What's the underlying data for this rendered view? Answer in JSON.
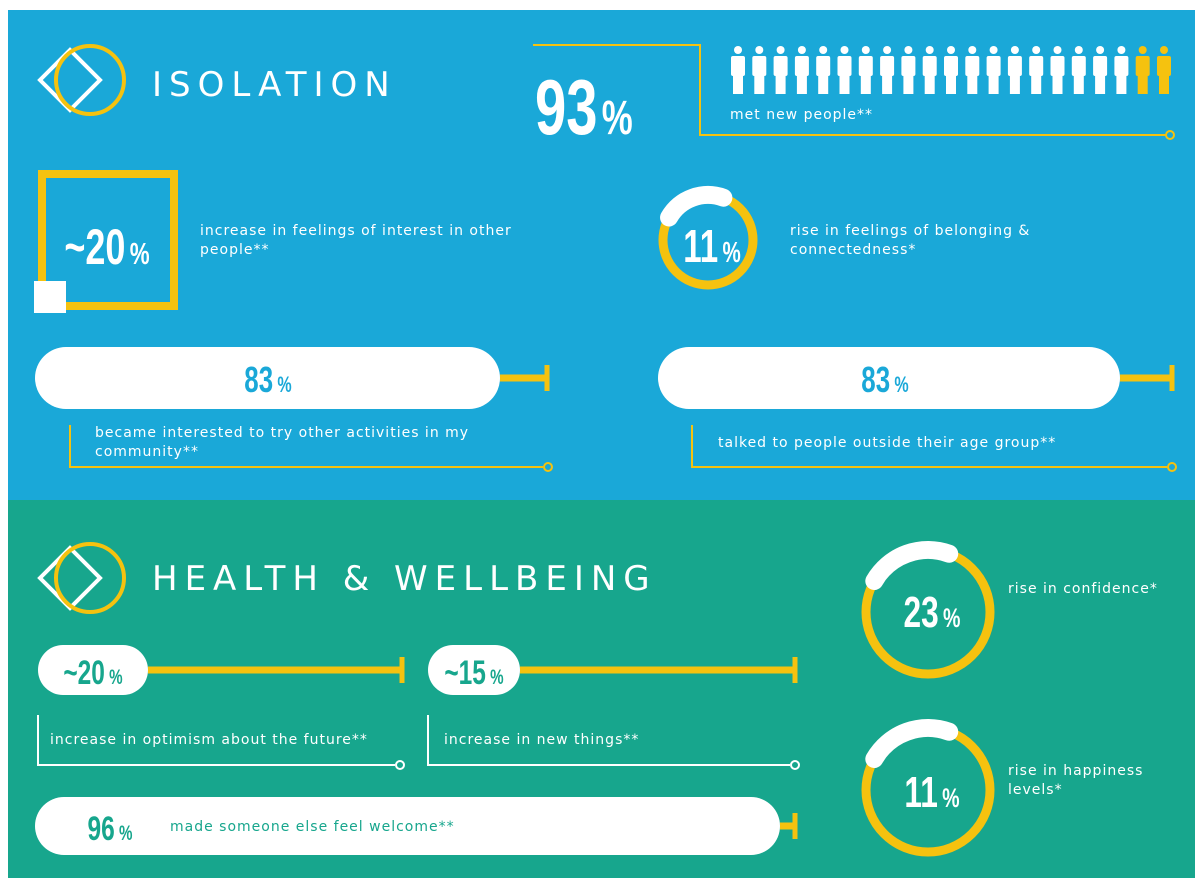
{
  "isolation": {
    "title": "ISOLATION",
    "stats": [
      {
        "number": "93",
        "unit": "%",
        "label": "met new people**"
      },
      {
        "number": "~20",
        "unit": "%",
        "label": "increase in feelings of interest in other people**"
      },
      {
        "number": "11",
        "unit": "%",
        "label": "rise in feelings of belonging & connectedness*"
      },
      {
        "number": "83",
        "unit": "%",
        "label": "became interested to try other activities in my community**"
      },
      {
        "number": "83",
        "unit": "%",
        "label": "talked to people outside their age group**"
      }
    ]
  },
  "health": {
    "title": "HEALTH & WELLBEING",
    "stats": [
      {
        "number": "~20",
        "unit": "%",
        "label": "increase in optimism about the future**"
      },
      {
        "number": "~15",
        "unit": "%",
        "label": "increase in new things**"
      },
      {
        "number": "96",
        "unit": "%",
        "label": "made someone else feel welcome**"
      },
      {
        "number": "23",
        "unit": "%",
        "label": "rise in confidence*"
      },
      {
        "number": "11",
        "unit": "%",
        "label": "rise in happiness levels*"
      }
    ]
  }
}
